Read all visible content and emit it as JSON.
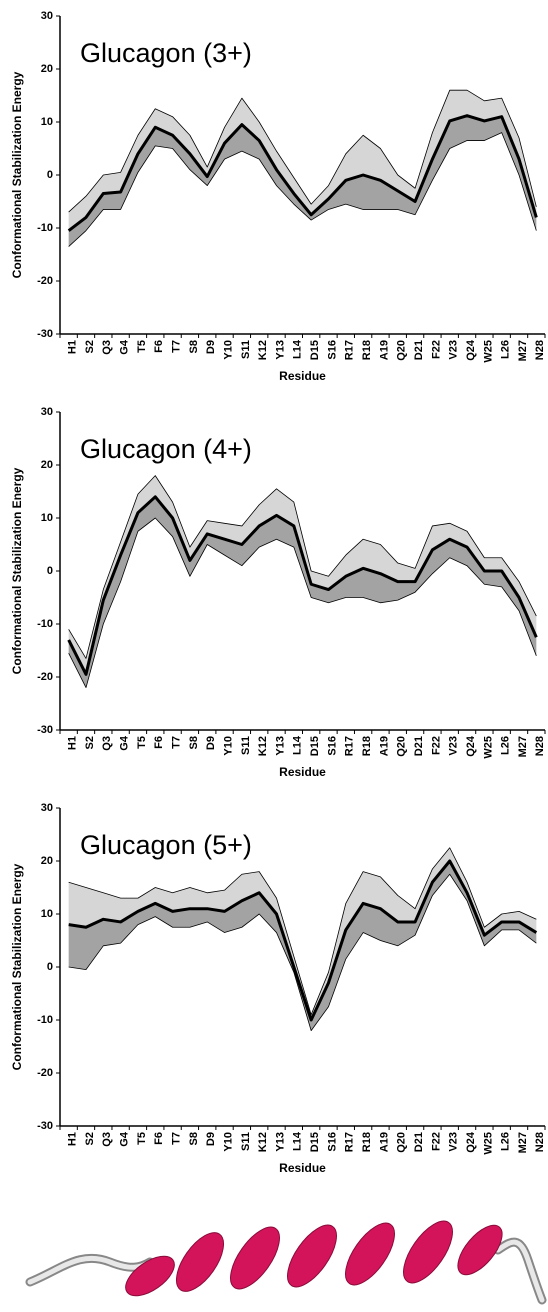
{
  "chart_data": [
    {
      "type": "line",
      "title": "Glucagon (3+)",
      "xlabel": "Residue",
      "ylabel": "Conformational Stabilization Energy",
      "categories": [
        "H1",
        "S2",
        "Q3",
        "G4",
        "T5",
        "F6",
        "T7",
        "S8",
        "D9",
        "Y10",
        "S11",
        "K12",
        "Y13",
        "L14",
        "D15",
        "S16",
        "R17",
        "R18",
        "A19",
        "Q20",
        "D21",
        "F22",
        "V23",
        "Q24",
        "W25",
        "L26",
        "M27",
        "N28"
      ],
      "series": [
        {
          "color": "#d6d6d6",
          "values": [
            -7,
            -4,
            0,
            0.5,
            7.5,
            12.5,
            11,
            7.5,
            1.5,
            9,
            14.5,
            10,
            4.5,
            -0.5,
            -5.5,
            -2,
            4,
            7.5,
            5,
            0,
            -2.5,
            8,
            16,
            16,
            14,
            14.5,
            7,
            -6
          ]
        },
        {
          "color": "#000000",
          "values": [
            -10.5,
            -8,
            -3.5,
            -3.2,
            4,
            9,
            7.5,
            4,
            -0.3,
            6,
            9.5,
            6.5,
            1,
            -3.5,
            -7.5,
            -4.5,
            -1,
            0,
            -1,
            -3,
            -5,
            3,
            10.2,
            11.2,
            10.2,
            11,
            3,
            -8
          ]
        },
        {
          "color": "#a3a3a3",
          "values": [
            -13.5,
            -10.5,
            -6.5,
            -6.5,
            0.5,
            5.5,
            5,
            1,
            -2,
            3,
            4.5,
            3,
            -2,
            -5.5,
            -8.5,
            -6.5,
            -5.5,
            -6.5,
            -6.5,
            -6.5,
            -7.5,
            -1,
            5,
            6.5,
            6.5,
            8,
            0,
            -10.5
          ]
        }
      ],
      "ylim": [
        -30,
        30
      ],
      "yticks": [
        -30,
        -20,
        -10,
        0,
        10,
        20,
        30
      ]
    },
    {
      "type": "line",
      "title": "Glucagon (4+)",
      "xlabel": "Residue",
      "ylabel": "Conformational Stabilization Energy",
      "categories": [
        "H1",
        "S2",
        "Q3",
        "G4",
        "T5",
        "F6",
        "T7",
        "S8",
        "D9",
        "Y10",
        "S11",
        "K12",
        "Y13",
        "L14",
        "D15",
        "S16",
        "R17",
        "R18",
        "A19",
        "Q20",
        "D21",
        "F22",
        "V23",
        "Q24",
        "W25",
        "L26",
        "M27",
        "N28"
      ],
      "series": [
        {
          "color": "#d6d6d6",
          "values": [
            -11,
            -16.5,
            -3.5,
            5.5,
            14.5,
            18,
            13,
            4.5,
            9.5,
            9,
            8.5,
            12.5,
            15.5,
            13,
            0,
            -1,
            3,
            6,
            5,
            1.5,
            0.5,
            8.5,
            9,
            7.5,
            2.5,
            2.5,
            -2,
            -8.5
          ]
        },
        {
          "color": "#000000",
          "values": [
            -13,
            -19.5,
            -5.5,
            3,
            11,
            14,
            10,
            2,
            7,
            6,
            5,
            8.5,
            10.5,
            8.5,
            -2.5,
            -3.5,
            -1,
            0.5,
            -0.5,
            -2,
            -2,
            4,
            6,
            4.5,
            0,
            0,
            -5,
            -12.5
          ]
        },
        {
          "color": "#a3a3a3",
          "values": [
            -15.5,
            -22,
            -10,
            -2,
            7.5,
            10,
            6.5,
            -1,
            5,
            3,
            1,
            4.5,
            6,
            4.5,
            -5,
            -6,
            -5,
            -5,
            -6,
            -5.5,
            -4,
            -0.5,
            2.5,
            1,
            -2.5,
            -3,
            -7.5,
            -16
          ]
        }
      ],
      "ylim": [
        -30,
        30
      ],
      "yticks": [
        -30,
        -20,
        -10,
        0,
        10,
        20,
        30
      ]
    },
    {
      "type": "line",
      "title": "Glucagon (5+)",
      "xlabel": "Residue",
      "ylabel": "Conformational Stabilization Energy",
      "categories": [
        "H1",
        "S2",
        "Q3",
        "G4",
        "T5",
        "F6",
        "T7",
        "S8",
        "D9",
        "Y10",
        "S11",
        "K12",
        "Y13",
        "L14",
        "D15",
        "S16",
        "R17",
        "R18",
        "A19",
        "Q20",
        "D21",
        "F22",
        "V23",
        "Q24",
        "W25",
        "L26",
        "M27",
        "N28"
      ],
      "series": [
        {
          "color": "#d6d6d6",
          "values": [
            16,
            15,
            14,
            13,
            13,
            15,
            14,
            15,
            14,
            14.5,
            17.5,
            18,
            13,
            2,
            -9,
            -1,
            12,
            18,
            17,
            13.5,
            11,
            18.5,
            22.5,
            16,
            7.5,
            10,
            10.5,
            9
          ]
        },
        {
          "color": "#000000",
          "values": [
            8,
            7.5,
            9,
            8.5,
            10.5,
            12,
            10.5,
            11,
            11,
            10.5,
            12.5,
            14,
            10,
            0,
            -10,
            -3,
            7,
            12,
            11,
            8.5,
            8.5,
            16,
            20,
            14,
            6,
            8.5,
            8.5,
            6.5
          ]
        },
        {
          "color": "#a3a3a3",
          "values": [
            0,
            -0.5,
            4,
            4.5,
            8,
            9.5,
            7.5,
            7.5,
            8.5,
            6.5,
            7.5,
            10,
            6.5,
            -1,
            -12,
            -7.5,
            1.5,
            6.5,
            5,
            4,
            6,
            13.5,
            17.5,
            12.5,
            4,
            7,
            7,
            4.5
          ]
        }
      ],
      "ylim": [
        -30,
        30
      ],
      "yticks": [
        -30,
        -20,
        -10,
        0,
        10,
        20,
        30
      ]
    }
  ]
}
